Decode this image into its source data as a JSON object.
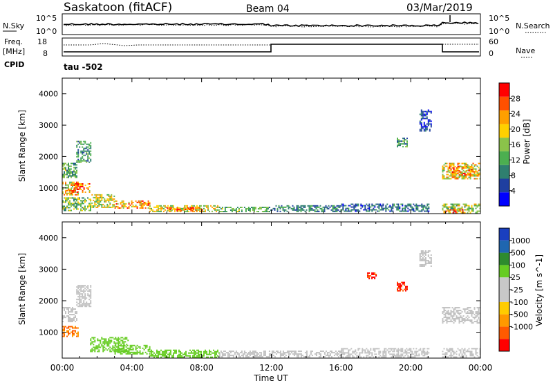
{
  "header": {
    "station": "Saskatoon (fitACF)",
    "beam": "Beam 04",
    "date": "03/Mar/2019"
  },
  "noise_panel": {
    "left_label": "N.Sky",
    "left_ticks": [
      "10^5",
      "10^0"
    ],
    "right_label": "N.Search",
    "right_ticks": [
      "10^5",
      "10^0"
    ]
  },
  "freq_panel": {
    "left_label_1": "Freq.",
    "left_label_2": "[MHz]",
    "left_ticks": [
      "18",
      "8"
    ],
    "right_label": "Nave",
    "right_ticks": [
      "60",
      "0"
    ],
    "cpid_label": "CPID",
    "cpid_value": "tau -502"
  },
  "colors": {
    "power_scale": [
      "#0000ff",
      "#1f3fa0",
      "#2f7f6f",
      "#4caf50",
      "#8bc34a",
      "#ffd000",
      "#ff9f00",
      "#ff5000",
      "#ff0000"
    ],
    "velocity_scale": [
      "#ff0000",
      "#ff5a00",
      "#ff9900",
      "#ffcc00",
      "#c8c8c8",
      "#c8c8c8",
      "#66cc22",
      "#2e8b2e",
      "#1f66b0",
      "#1a3fbf"
    ],
    "ground_scatter": "#c0c0c0"
  },
  "x_axis": {
    "label": "Time UT",
    "ticks": [
      "00:00",
      "04:00",
      "08:00",
      "12:00",
      "16:00",
      "20:00",
      "00:00"
    ]
  },
  "chart_data": [
    {
      "type": "heatmap",
      "name": "power",
      "ylabel": "Slant Range [km]",
      "yticks": [
        1000,
        2000,
        3000,
        4000
      ],
      "ylim": [
        180,
        4500
      ],
      "xlim_hours": [
        0,
        24
      ],
      "colorbar_label": "Power [dB]",
      "colorbar_ticks": [
        4,
        8,
        12,
        16,
        20,
        24,
        28
      ],
      "colorbar_range": [
        0,
        32
      ],
      "regions": [
        {
          "t": [
            0.0,
            0.9
          ],
          "r": [
            800,
            1200
          ],
          "v": 24
        },
        {
          "t": [
            0.5,
            1.6
          ],
          "r": [
            850,
            1150
          ],
          "v": 28
        },
        {
          "t": [
            0.0,
            0.8
          ],
          "r": [
            1350,
            1800
          ],
          "v": 14
        },
        {
          "t": [
            0.8,
            1.6
          ],
          "r": [
            1800,
            2500
          ],
          "v": 12
        },
        {
          "t": [
            0.0,
            1.6
          ],
          "r": [
            300,
            700
          ],
          "v": 16
        },
        {
          "t": [
            1.6,
            3.0
          ],
          "r": [
            400,
            800
          ],
          "v": 20
        },
        {
          "t": [
            3.0,
            5.0
          ],
          "r": [
            350,
            600
          ],
          "v": 26
        },
        {
          "t": [
            5.0,
            9.0
          ],
          "r": [
            250,
            450
          ],
          "v": 20
        },
        {
          "t": [
            6.0,
            8.0
          ],
          "r": [
            250,
            380
          ],
          "v": 26
        },
        {
          "t": [
            9.0,
            12.0
          ],
          "r": [
            250,
            400
          ],
          "v": 14
        },
        {
          "t": [
            12.0,
            16.0
          ],
          "r": [
            250,
            450
          ],
          "v": 10
        },
        {
          "t": [
            16.0,
            21.0
          ],
          "r": [
            250,
            500
          ],
          "v": 8
        },
        {
          "t": [
            19.2,
            19.8
          ],
          "r": [
            2300,
            2600
          ],
          "v": 12
        },
        {
          "t": [
            20.5,
            21.2
          ],
          "r": [
            2800,
            3500
          ],
          "v": 6
        },
        {
          "t": [
            21.8,
            24.0
          ],
          "r": [
            1300,
            1800
          ],
          "v": 22
        },
        {
          "t": [
            22.2,
            23.5
          ],
          "r": [
            1400,
            1700
          ],
          "v": 26
        },
        {
          "t": [
            21.8,
            24.0
          ],
          "r": [
            220,
            500
          ],
          "v": 18
        },
        {
          "t": [
            22.0,
            23.0
          ],
          "r": [
            220,
            320
          ],
          "v": 28
        }
      ]
    },
    {
      "type": "heatmap",
      "name": "velocity",
      "ylabel": "Slant Range [km]",
      "yticks": [
        1000,
        2000,
        3000,
        4000
      ],
      "ylim": [
        180,
        4500
      ],
      "xlim_hours": [
        0,
        24
      ],
      "colorbar_label": "Velocity [m s^-1]",
      "colorbar_tick_labels": [
        "1000",
        "500",
        "100",
        "25",
        "-25",
        "-100",
        "-500",
        "-1000"
      ],
      "regions": [
        {
          "t": [
            0.0,
            0.9
          ],
          "r": [
            850,
            1200
          ],
          "v": -100
        },
        {
          "t": [
            0.0,
            0.8
          ],
          "r": [
            1350,
            1800
          ],
          "v": 0,
          "ground": true
        },
        {
          "t": [
            0.8,
            1.6
          ],
          "r": [
            1800,
            2500
          ],
          "v": 0,
          "ground": true
        },
        {
          "t": [
            1.6,
            3.8
          ],
          "r": [
            400,
            850
          ],
          "v": 100
        },
        {
          "t": [
            3.0,
            5.0
          ],
          "r": [
            300,
            600
          ],
          "v": 150
        },
        {
          "t": [
            5.0,
            9.0
          ],
          "r": [
            220,
            450
          ],
          "v": 60
        },
        {
          "t": [
            9.0,
            16.0
          ],
          "r": [
            220,
            420
          ],
          "v": 0,
          "ground": true
        },
        {
          "t": [
            16.0,
            21.0
          ],
          "r": [
            220,
            500
          ],
          "v": 0,
          "ground": true
        },
        {
          "t": [
            19.2,
            19.8
          ],
          "r": [
            2300,
            2600
          ],
          "v": -500
        },
        {
          "t": [
            17.5,
            18.0
          ],
          "r": [
            2700,
            2900
          ],
          "v": -500
        },
        {
          "t": [
            20.5,
            21.2
          ],
          "r": [
            3100,
            3600
          ],
          "v": 0,
          "ground": true
        },
        {
          "t": [
            21.8,
            24.0
          ],
          "r": [
            1300,
            1800
          ],
          "v": 0,
          "ground": true
        },
        {
          "t": [
            21.8,
            24.0
          ],
          "r": [
            220,
            500
          ],
          "v": 0,
          "ground": true
        }
      ]
    }
  ]
}
